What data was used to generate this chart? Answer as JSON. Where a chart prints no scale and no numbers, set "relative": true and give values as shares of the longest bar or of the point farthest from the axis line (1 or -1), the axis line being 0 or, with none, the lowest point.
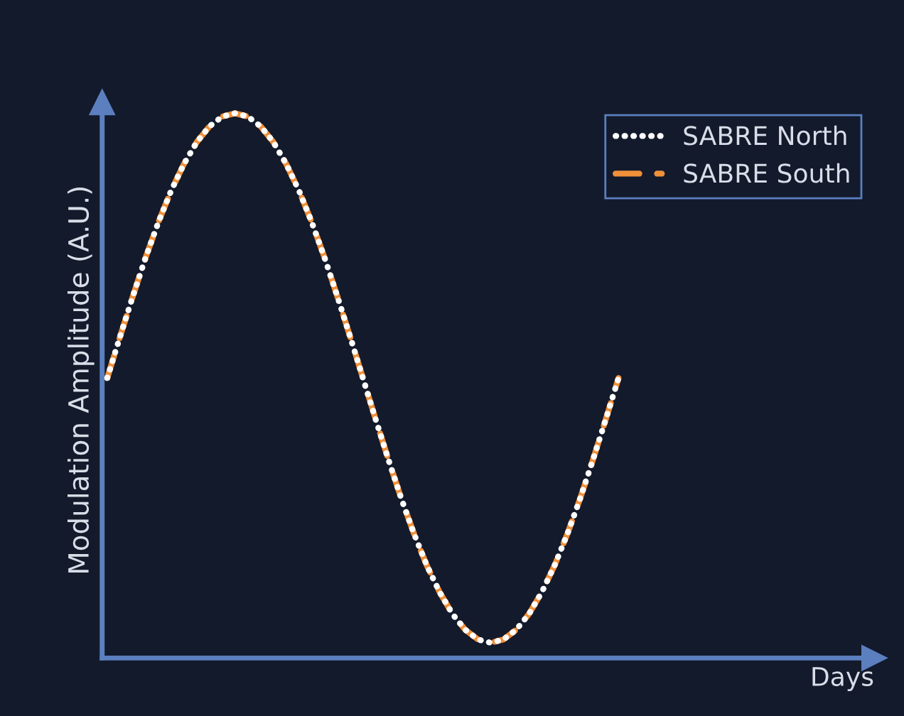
{
  "chart_data": {
    "type": "line",
    "relative": true,
    "annotations": [
      "Days"
    ],
    "ylabel": "Modulation Amplitude (A.U.)",
    "legend": "top right",
    "categories": [
      null,
      null,
      null,
      null,
      null,
      null,
      null,
      null,
      null,
      null,
      null,
      null,
      null,
      null,
      null,
      null,
      null,
      null,
      null,
      null,
      null,
      null,
      null,
      null,
      null,
      null,
      null,
      null,
      null,
      null,
      null,
      null,
      null,
      null,
      null,
      null,
      null,
      null,
      null,
      null,
      null
    ],
    "series": [
      {
        "name": "SABRE North",
        "color": "#ffffff",
        "line_style": "dotted",
        "values": [
          0.514,
          0.59,
          0.664,
          0.735,
          0.8,
          0.858,
          0.907,
          0.947,
          0.976,
          0.994,
          1.0,
          0.994,
          0.976,
          0.947,
          0.907,
          0.858,
          0.8,
          0.735,
          0.664,
          0.59,
          0.514,
          0.438,
          0.364,
          0.293,
          0.228,
          0.17,
          0.121,
          0.081,
          0.052,
          0.034,
          0.028,
          0.034,
          0.052,
          0.081,
          0.121,
          0.17,
          0.228,
          0.293,
          0.364,
          0.438,
          0.514
        ]
      },
      {
        "name": "SABRE South",
        "color": "#f0903a",
        "line_style": "dashed",
        "values": [
          0.514,
          0.59,
          0.664,
          0.735,
          0.8,
          0.858,
          0.907,
          0.947,
          0.976,
          0.994,
          1.0,
          0.994,
          0.976,
          0.947,
          0.907,
          0.858,
          0.8,
          0.735,
          0.664,
          0.59,
          0.514,
          0.438,
          0.364,
          0.293,
          0.228,
          0.17,
          0.121,
          0.081,
          0.052,
          0.034,
          0.028,
          0.034,
          0.052,
          0.081,
          0.121,
          0.17,
          0.228,
          0.293,
          0.364,
          0.438,
          0.514
        ]
      }
    ]
  }
}
